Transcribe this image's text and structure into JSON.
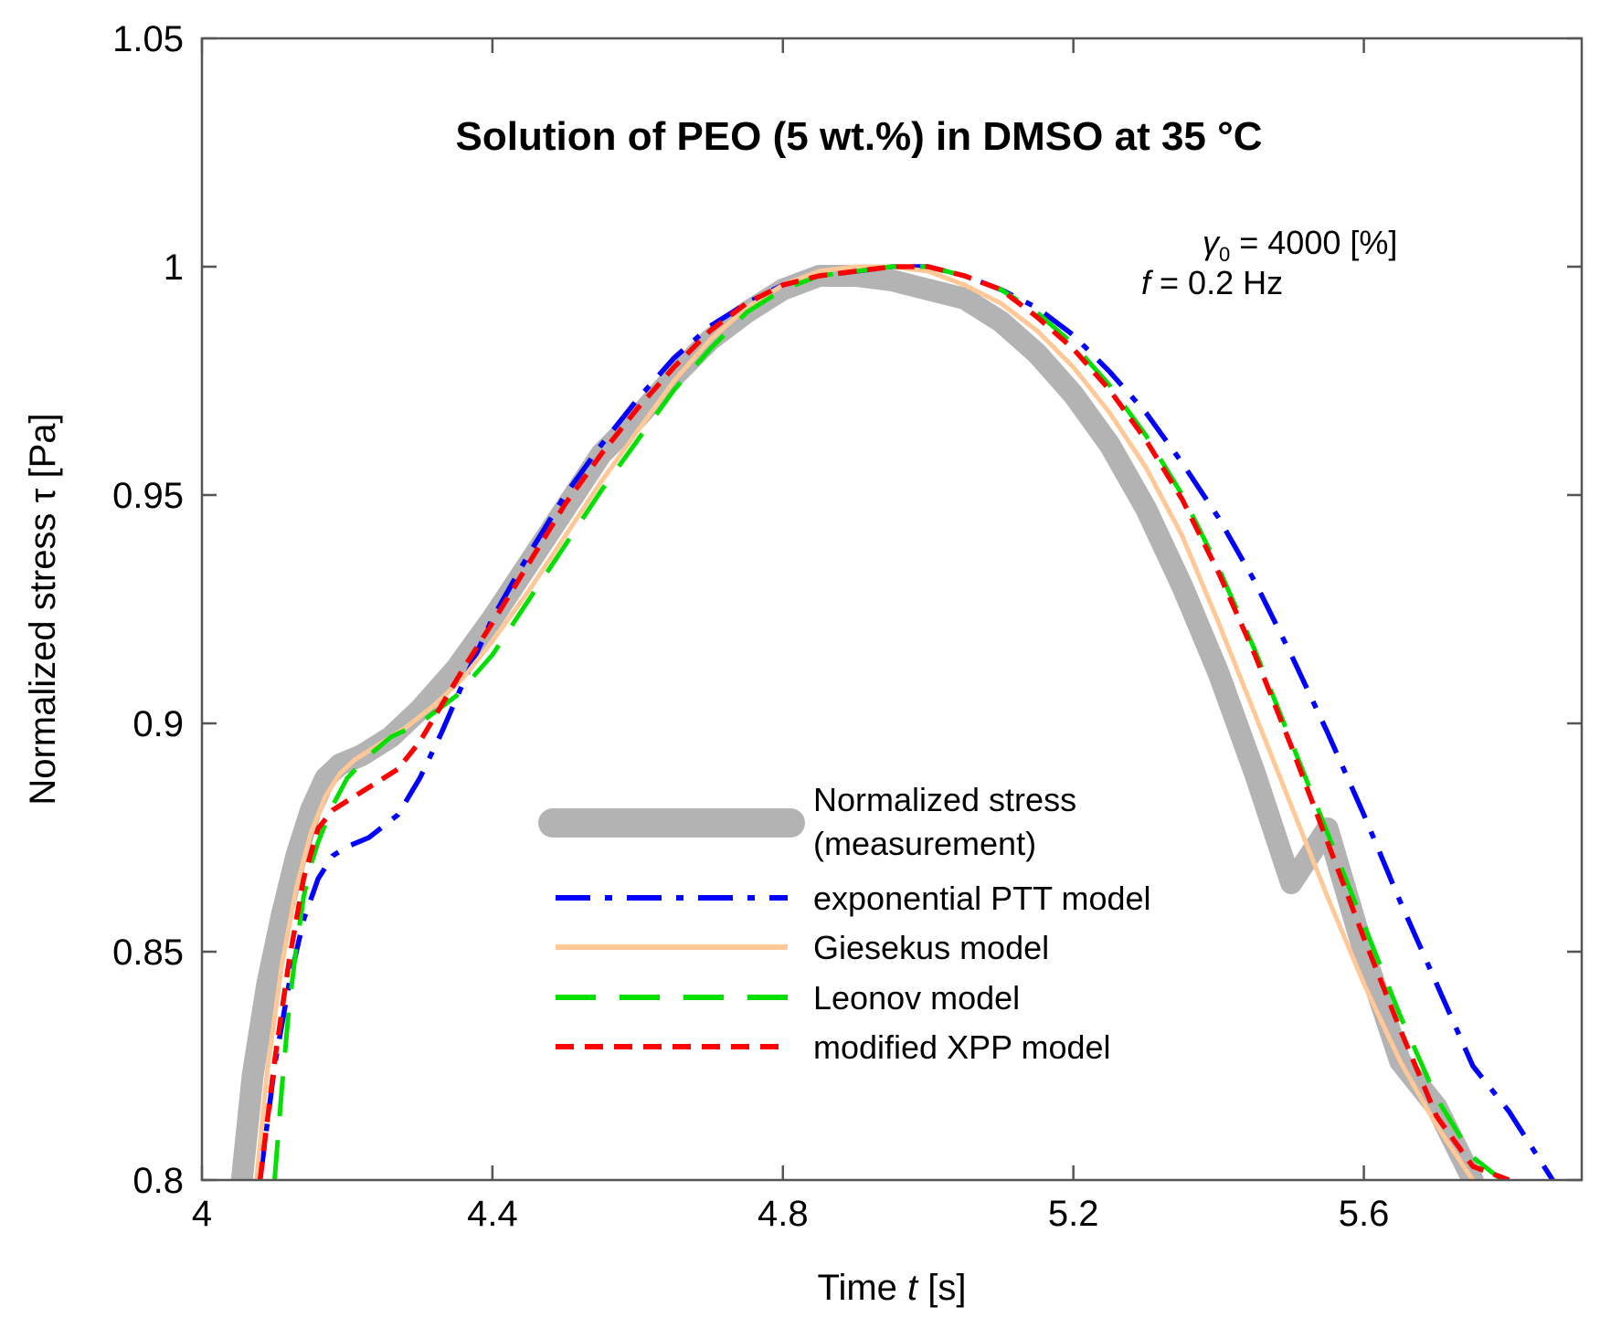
{
  "chart_data": {
    "type": "line",
    "title": "Solution of PEO (5 wt.%) in DMSO at 35 °C",
    "xlabel": {
      "prefix": "Time ",
      "var": "t",
      "suffix": " [s]"
    },
    "ylabel": {
      "prefix": "Normalized stress ",
      "var": "τ",
      "suffix": " [Pa]"
    },
    "xlim": [
      4,
      5.9
    ],
    "ylim": [
      0.8,
      1.05
    ],
    "xticks": [
      4,
      4.4,
      4.8,
      5.2,
      5.6
    ],
    "xtick_labels": [
      "4",
      "4.4",
      "4.8",
      "5.2",
      "5.6"
    ],
    "yticks": [
      0.8,
      0.85,
      0.9,
      0.95,
      1,
      1.05
    ],
    "ytick_labels": [
      "0.8",
      "0.85",
      "0.9",
      "0.95",
      "1",
      "1.05"
    ],
    "annotations": [
      {
        "symbol": "γ",
        "sub": "0",
        "text": " = 4000 [%]"
      },
      {
        "symbol": "f",
        "sub": "",
        "text": " = 0.2 Hz"
      }
    ],
    "legend_position": "lower-center",
    "series": [
      {
        "name": "Normalized stress (measurement)",
        "legend_lines": [
          "Normalized stress",
          "(measurement)"
        ],
        "color": "#b3b3b3",
        "style": "thick",
        "x": [
          4.055,
          4.07,
          4.09,
          4.11,
          4.13,
          4.15,
          4.17,
          4.19,
          4.22,
          4.26,
          4.3,
          4.35,
          4.4,
          4.45,
          4.5,
          4.55,
          4.6,
          4.65,
          4.7,
          4.75,
          4.8,
          4.85,
          4.9,
          4.95,
          5.0,
          5.05,
          5.1,
          5.15,
          5.2,
          5.25,
          5.3,
          5.35,
          5.4,
          5.45,
          5.5,
          5.55,
          5.6,
          5.65,
          5.7,
          5.75
        ],
        "y": [
          0.8,
          0.823,
          0.843,
          0.858,
          0.871,
          0.881,
          0.888,
          0.891,
          0.893,
          0.897,
          0.903,
          0.912,
          0.923,
          0.935,
          0.947,
          0.959,
          0.967,
          0.976,
          0.984,
          0.99,
          0.995,
          0.998,
          0.998,
          0.997,
          0.995,
          0.993,
          0.988,
          0.981,
          0.972,
          0.961,
          0.947,
          0.93,
          0.911,
          0.889,
          0.865,
          0.877,
          0.85,
          0.826,
          0.816,
          0.8
        ]
      },
      {
        "name": "exponential PTT model",
        "legend_lines": [
          "exponential PTT model"
        ],
        "color": "#0000ff",
        "style": "dashdot",
        "x": [
          4.08,
          4.1,
          4.12,
          4.14,
          4.16,
          4.18,
          4.2,
          4.23,
          4.27,
          4.3,
          4.33,
          4.36,
          4.4,
          4.45,
          4.5,
          4.55,
          4.6,
          4.65,
          4.7,
          4.75,
          4.8,
          4.85,
          4.9,
          4.95,
          5.0,
          5.05,
          5.1,
          5.15,
          5.2,
          5.25,
          5.3,
          5.35,
          5.4,
          5.45,
          5.5,
          5.55,
          5.6,
          5.65,
          5.7,
          5.75,
          5.8,
          5.86
        ],
        "y": [
          0.8,
          0.825,
          0.843,
          0.857,
          0.866,
          0.871,
          0.873,
          0.875,
          0.88,
          0.888,
          0.898,
          0.909,
          0.923,
          0.937,
          0.95,
          0.961,
          0.971,
          0.98,
          0.987,
          0.992,
          0.996,
          0.998,
          0.999,
          1.0,
          1.0,
          0.998,
          0.995,
          0.991,
          0.985,
          0.977,
          0.968,
          0.957,
          0.945,
          0.931,
          0.915,
          0.898,
          0.88,
          0.861,
          0.843,
          0.825,
          0.815,
          0.8
        ]
      },
      {
        "name": "Giesekus model",
        "legend_lines": [
          "Giesekus model"
        ],
        "color": "#ffc896",
        "style": "solid",
        "x": [
          4.075,
          4.09,
          4.11,
          4.13,
          4.15,
          4.17,
          4.19,
          4.21,
          4.24,
          4.28,
          4.32,
          4.36,
          4.4,
          4.45,
          4.5,
          4.55,
          4.6,
          4.65,
          4.7,
          4.75,
          4.8,
          4.85,
          4.9,
          4.95,
          5.0,
          5.05,
          5.1,
          5.15,
          5.2,
          5.25,
          5.3,
          5.35,
          5.4,
          5.45,
          5.5,
          5.55,
          5.6,
          5.65,
          5.7,
          5.75
        ],
        "y": [
          0.8,
          0.824,
          0.847,
          0.864,
          0.876,
          0.884,
          0.889,
          0.892,
          0.895,
          0.899,
          0.904,
          0.91,
          0.918,
          0.929,
          0.941,
          0.953,
          0.964,
          0.975,
          0.984,
          0.991,
          0.996,
          0.999,
          1.0,
          1.0,
          0.999,
          0.996,
          0.992,
          0.986,
          0.978,
          0.968,
          0.956,
          0.941,
          0.922,
          0.902,
          0.882,
          0.862,
          0.843,
          0.826,
          0.812,
          0.8
        ]
      },
      {
        "name": "Leonov model",
        "legend_lines": [
          "Leonov model"
        ],
        "color": "#00e000",
        "style": "longdash",
        "x": [
          4.1,
          4.11,
          4.12,
          4.13,
          4.14,
          4.15,
          4.16,
          4.17,
          4.18,
          4.2,
          4.23,
          4.26,
          4.3,
          4.35,
          4.4,
          4.45,
          4.5,
          4.55,
          4.6,
          4.65,
          4.7,
          4.75,
          4.8,
          4.85,
          4.9,
          4.95,
          5.0,
          5.05,
          5.1,
          5.15,
          5.2,
          5.25,
          5.3,
          5.35,
          5.4,
          5.45,
          5.5,
          5.55,
          5.6,
          5.65,
          5.7,
          5.75,
          5.79
        ],
        "y": [
          0.8,
          0.82,
          0.838,
          0.851,
          0.862,
          0.869,
          0.874,
          0.878,
          0.882,
          0.888,
          0.893,
          0.897,
          0.9,
          0.906,
          0.915,
          0.927,
          0.939,
          0.951,
          0.962,
          0.973,
          0.982,
          0.99,
          0.995,
          0.998,
          0.999,
          1.0,
          1.0,
          0.998,
          0.995,
          0.99,
          0.983,
          0.974,
          0.963,
          0.95,
          0.934,
          0.916,
          0.896,
          0.876,
          0.856,
          0.836,
          0.818,
          0.805,
          0.8
        ]
      },
      {
        "name": "modified XPP model",
        "legend_lines": [
          "modified XPP model"
        ],
        "color": "#ff0000",
        "style": "shortdash",
        "x": [
          4.08,
          4.1,
          4.12,
          4.14,
          4.16,
          4.18,
          4.2,
          4.23,
          4.27,
          4.3,
          4.33,
          4.36,
          4.4,
          4.45,
          4.5,
          4.55,
          4.6,
          4.65,
          4.7,
          4.75,
          4.8,
          4.85,
          4.9,
          4.95,
          5.0,
          5.05,
          5.1,
          5.15,
          5.2,
          5.25,
          5.3,
          5.35,
          5.4,
          5.45,
          5.5,
          5.55,
          5.6,
          5.65,
          5.7,
          5.75,
          5.8
        ],
        "y": [
          0.8,
          0.826,
          0.848,
          0.866,
          0.877,
          0.881,
          0.883,
          0.886,
          0.89,
          0.896,
          0.904,
          0.912,
          0.922,
          0.935,
          0.948,
          0.959,
          0.969,
          0.978,
          0.986,
          0.992,
          0.996,
          0.998,
          0.999,
          1.0,
          1.0,
          0.998,
          0.995,
          0.989,
          0.982,
          0.973,
          0.962,
          0.949,
          0.933,
          0.915,
          0.895,
          0.874,
          0.853,
          0.833,
          0.814,
          0.803,
          0.8
        ]
      }
    ]
  }
}
